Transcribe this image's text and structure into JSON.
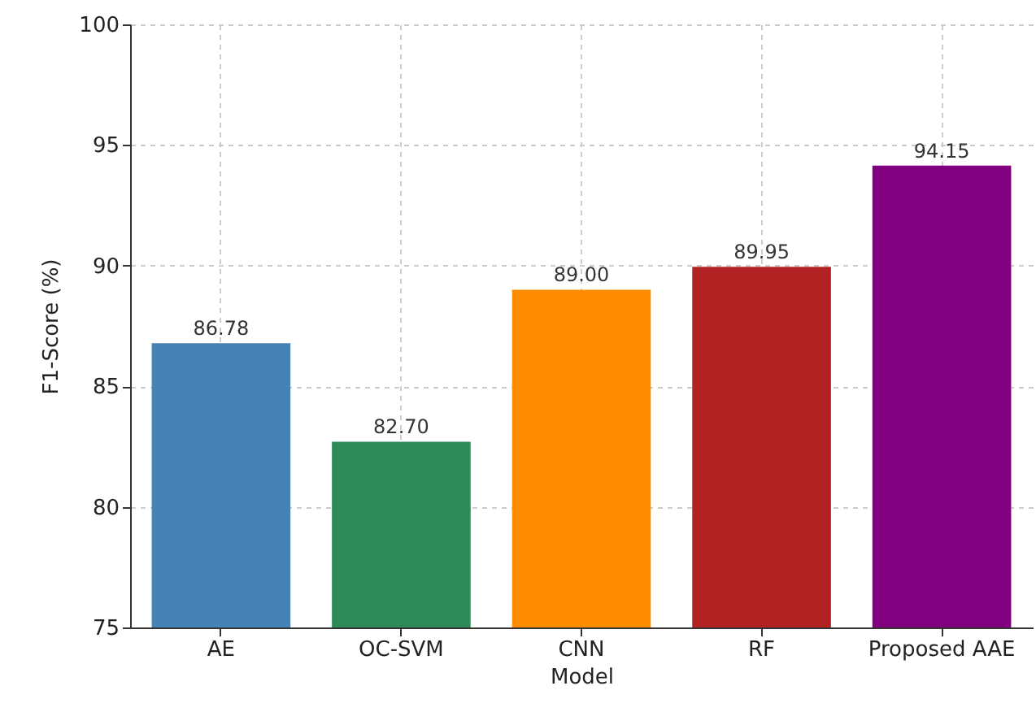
{
  "chart_data": {
    "type": "bar",
    "xlabel": "Model",
    "ylabel": "F1-Score (%)",
    "categories": [
      "AE",
      "OC-SVM",
      "CNN",
      "RF",
      "Proposed AAE"
    ],
    "values": [
      86.78,
      82.7,
      89.0,
      89.95,
      94.15
    ],
    "value_labels": [
      "86.78",
      "82.70",
      "89.00",
      "89.95",
      "94.15"
    ],
    "colors": [
      "#4682b4",
      "#2e8b57",
      "#ff8c00",
      "#b22222",
      "#800080"
    ],
    "ylim": [
      75,
      100
    ],
    "yticks": [
      75,
      80,
      85,
      90,
      95,
      100
    ],
    "grid": true
  }
}
